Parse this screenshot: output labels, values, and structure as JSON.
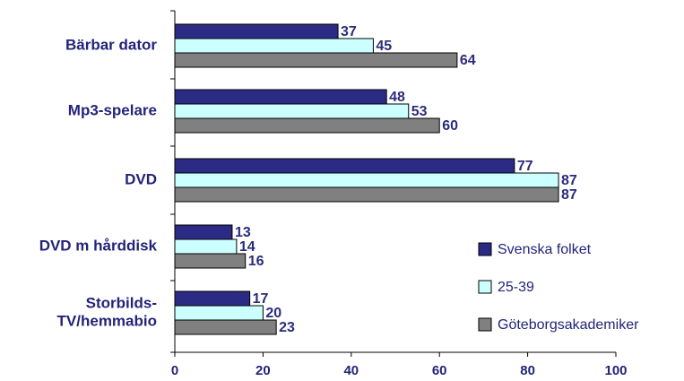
{
  "chart_data": {
    "type": "bar",
    "orientation": "horizontal",
    "categories": [
      "Bärbar dator",
      "Mp3-spelare",
      "DVD",
      "DVD m hårddisk",
      "Storbilds-TV/hemmabio"
    ],
    "category_lines": [
      [
        "Bärbar dator"
      ],
      [
        "Mp3-spelare"
      ],
      [
        "DVD"
      ],
      [
        "DVD m hårddisk"
      ],
      [
        "Storbilds-",
        "TV/hemmabio"
      ]
    ],
    "series": [
      {
        "name": "Svenska folket",
        "color": "#2b2b86",
        "values": [
          37,
          48,
          77,
          13,
          17
        ]
      },
      {
        "name": "25-39",
        "color": "#ccffff",
        "values": [
          45,
          53,
          87,
          14,
          20
        ]
      },
      {
        "name": "Göteborgsakademiker",
        "color": "#808080",
        "values": [
          64,
          60,
          87,
          16,
          23
        ]
      }
    ],
    "xlim": [
      0,
      100
    ],
    "xticks": [
      0,
      20,
      40,
      60,
      80,
      100
    ],
    "grid": false,
    "legend_position": "bottom-right"
  }
}
